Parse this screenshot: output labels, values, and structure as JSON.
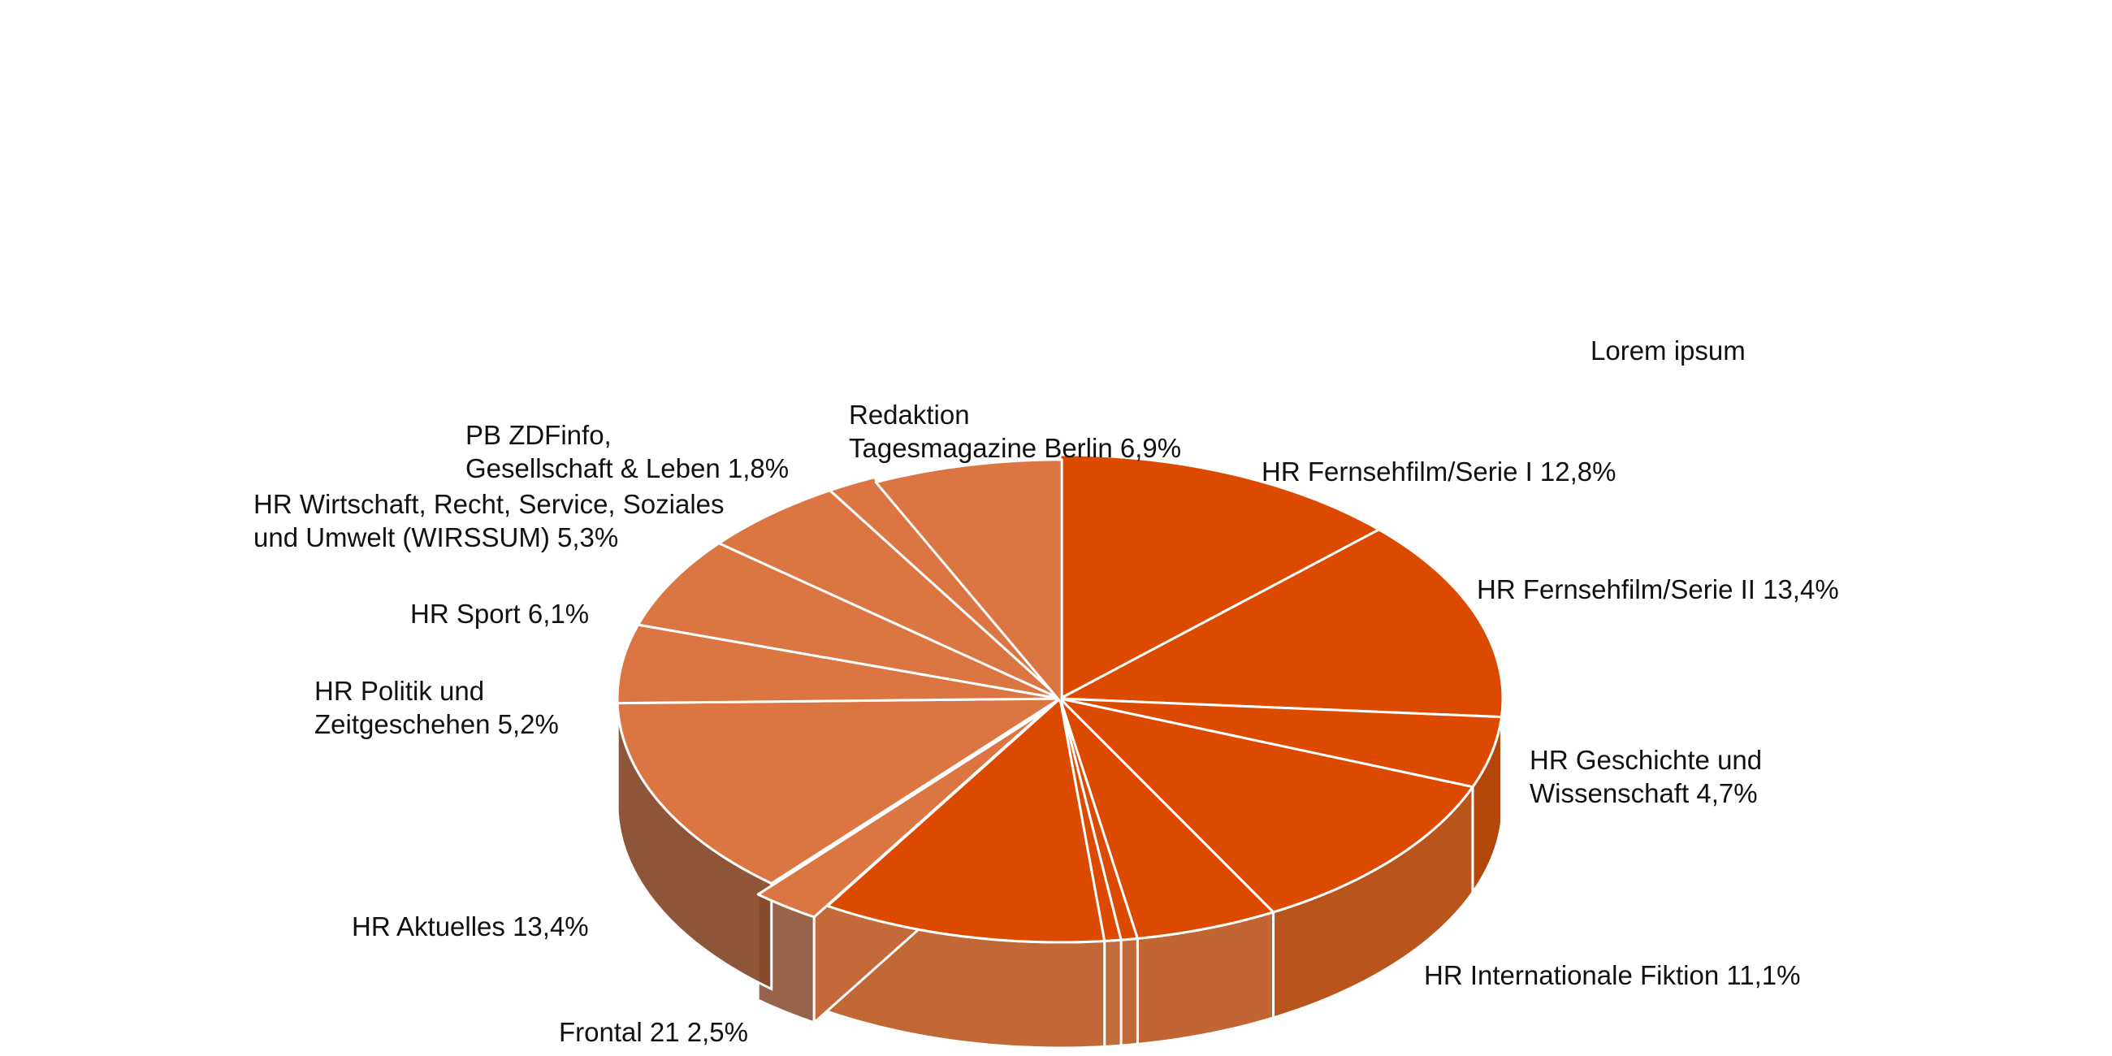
{
  "chart_data": {
    "type": "pie",
    "style": "3d-exploded",
    "title": "Lorem ipsum",
    "slices": [
      {
        "label": [
          "HR Fernsehfilm/Serie I 12,8%"
        ],
        "value": 12.8,
        "group": "dark"
      },
      {
        "label": [
          "HR Fernsehfilm/Serie II 13,4%"
        ],
        "value": 13.4,
        "group": "dark"
      },
      {
        "label": [
          "HR Geschichte und",
          "Wissenschaft 4,7%"
        ],
        "value": 4.7,
        "group": "dark"
      },
      {
        "label": [
          "HR Internationale Fiktion 11,1%"
        ],
        "value": 11.1,
        "group": "dark"
      },
      {
        "label": [],
        "value": 5.2,
        "group": "dark"
      },
      {
        "label": [],
        "value": 0.6,
        "group": "dark"
      },
      {
        "label": [],
        "value": 0.6,
        "group": "dark"
      },
      {
        "label": [],
        "value": 10.4,
        "group": "dark"
      },
      {
        "label": [
          "Frontal 21  2,5%"
        ],
        "value": 2.5,
        "group": "light",
        "exploded": true
      },
      {
        "label": [
          "HR Aktuelles  13,4%"
        ],
        "value": 13.4,
        "group": "light"
      },
      {
        "label": [
          "HR Politik und",
          "Zeitgeschehen 5,2%"
        ],
        "value": 5.2,
        "group": "light"
      },
      {
        "label": [
          "HR Sport  6,1%"
        ],
        "value": 6.1,
        "group": "light"
      },
      {
        "label": [
          "HR Wirtschaft, Recht, Service, Soziales",
          "und Umwelt (WIRSSUM)  5,3%"
        ],
        "value": 5.3,
        "group": "light"
      },
      {
        "label": [
          "PB ZDFinfo,",
          "Gesellschaft & Leben 1,8%"
        ],
        "value": 1.8,
        "group": "light"
      },
      {
        "label": [
          "Redaktion",
          "Tagesmagazine Berlin  6,9%"
        ],
        "value": 6.9,
        "group": "light"
      }
    ],
    "colors": {
      "dark_top": "#dc4a00",
      "dark_side": "#b03f00",
      "light_top": "#db7642",
      "light_side": "#85482a",
      "explode_face": "#c4693a"
    }
  }
}
